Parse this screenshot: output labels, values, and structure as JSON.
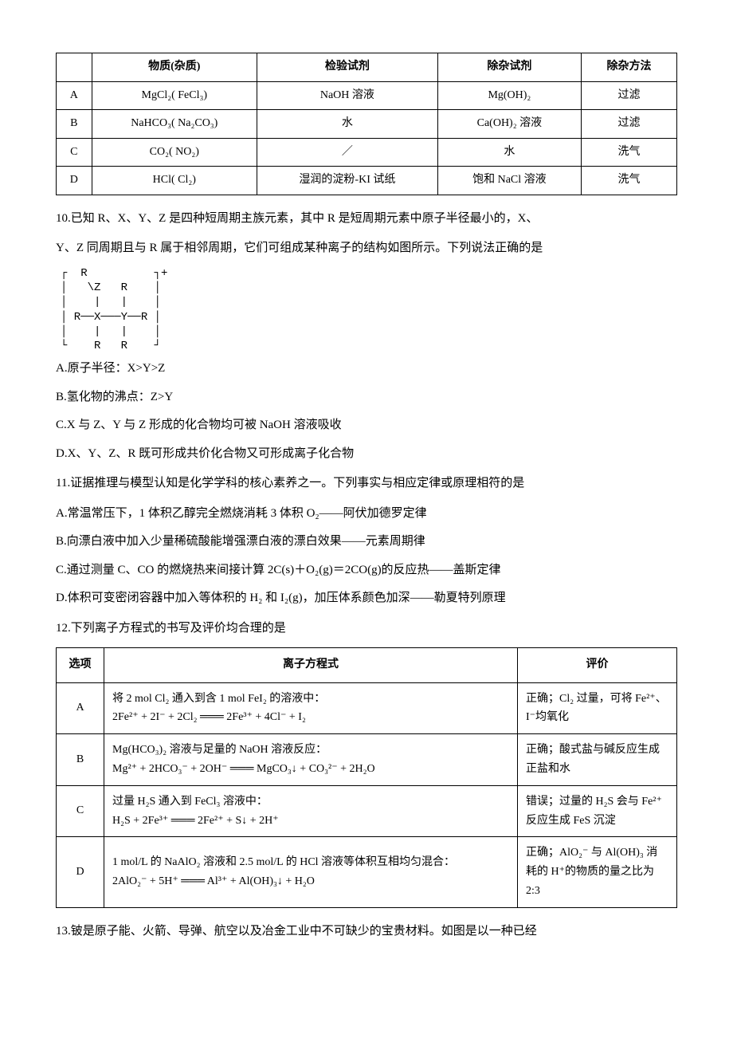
{
  "table1": {
    "headers": [
      "",
      "物质(杂质)",
      "检验试剂",
      "除杂试剂",
      "除杂方法"
    ],
    "rows": [
      [
        "A",
        "MgCl₂( FeCl₃)",
        "NaOH 溶液",
        "Mg(OH)₂",
        "过滤"
      ],
      [
        "B",
        "NaHCO₃( Na₂CO₃)",
        "水",
        "Ca(OH)₂ 溶液",
        "过滤"
      ],
      [
        "C",
        "CO₂( NO₂)",
        "／",
        "水",
        "洗气"
      ],
      [
        "D",
        "HCl( Cl₂)",
        "湿润的淀粉-KI 试纸",
        "饱和 NaCl 溶液",
        "洗气"
      ]
    ]
  },
  "q10": {
    "stem1": "10.已知 R、X、Y、Z 是四种短周期主族元素，其中 R 是短周期元素中原子半径最小的，X、",
    "stem2": "Y、Z 同周期且与 R 属于相邻周期，它们可组成某种离子的结构如图所示。下列说法正确的是",
    "diagram": "┌  R          ┐+\n│   \\Z   R    │\n│    |   |    │\n│ R──X───Y──R │\n│    |   |    │\n└    R   R    ┘",
    "A": "A.原子半径：X>Y>Z",
    "B": "B.氢化物的沸点：Z>Y",
    "C": "C.X 与 Z、Y 与 Z 形成的化合物均可被 NaOH 溶液吸收",
    "D": "D.X、Y、Z、R 既可形成共价化合物又可形成离子化合物"
  },
  "q11": {
    "stem": "11.证据推理与模型认知是化学学科的核心素养之一。下列事实与相应定律或原理相符的是",
    "A": "A.常温常压下，1 体积乙醇完全燃烧消耗 3 体积 O₂——阿伏加德罗定律",
    "B": "B.向漂白液中加入少量稀硫酸能增强漂白液的漂白效果——元素周期律",
    "C": "C.通过测量 C、CO 的燃烧热来间接计算 2C(s)＋O₂(g)＝2CO(g)的反应热——盖斯定律",
    "D": "D.体积可变密闭容器中加入等体积的 H₂ 和 I₂(g)，加压体系颜色加深——勒夏特列原理"
  },
  "q12": {
    "stem": "12.下列离子方程式的书写及评价均合理的是",
    "headers": [
      "选项",
      "离子方程式",
      "评价"
    ],
    "rows": [
      {
        "opt": "A",
        "eq": "将 2 mol Cl₂ 通入到含 1 mol FeI₂ 的溶液中：<br>2Fe²⁺ + 2I⁻ + 2Cl₂ ═══ 2Fe³⁺ + 4Cl⁻ + I₂",
        "ev": "正确；Cl₂ 过量，可将 Fe²⁺、I⁻均氧化"
      },
      {
        "opt": "B",
        "eq": "Mg(HCO₃)₂ 溶液与足量的 NaOH 溶液反应：<br>Mg²⁺ + 2HCO₃⁻ + 2OH⁻ ═══ MgCO₃↓ + CO₃²⁻ + 2H₂O",
        "ev": "正确；酸式盐与碱反应生成正盐和水"
      },
      {
        "opt": "C",
        "eq": "过量 H₂S 通入到 FeCl₃ 溶液中：<br>H₂S + 2Fe³⁺ ═══ 2Fe²⁺ + S↓ + 2H⁺",
        "ev": "错误；过量的 H₂S 会与 Fe²⁺反应生成 FeS 沉淀"
      },
      {
        "opt": "D",
        "eq": "1 mol/L 的 NaAlO₂ 溶液和 2.5 mol/L 的 HCl 溶液等体积互相均匀混合：<br>2AlO₂⁻ + 5H⁺ ═══ Al³⁺ + Al(OH)₃↓ + H₂O",
        "ev": "正确；AlO₂⁻ 与 Al(OH)₃ 消耗的 H⁺的物质的量之比为 2:3"
      }
    ]
  },
  "q13": {
    "stem": "13.铍是原子能、火箭、导弹、航空以及冶金工业中不可缺少的宝贵材料。如图是以一种已经"
  }
}
